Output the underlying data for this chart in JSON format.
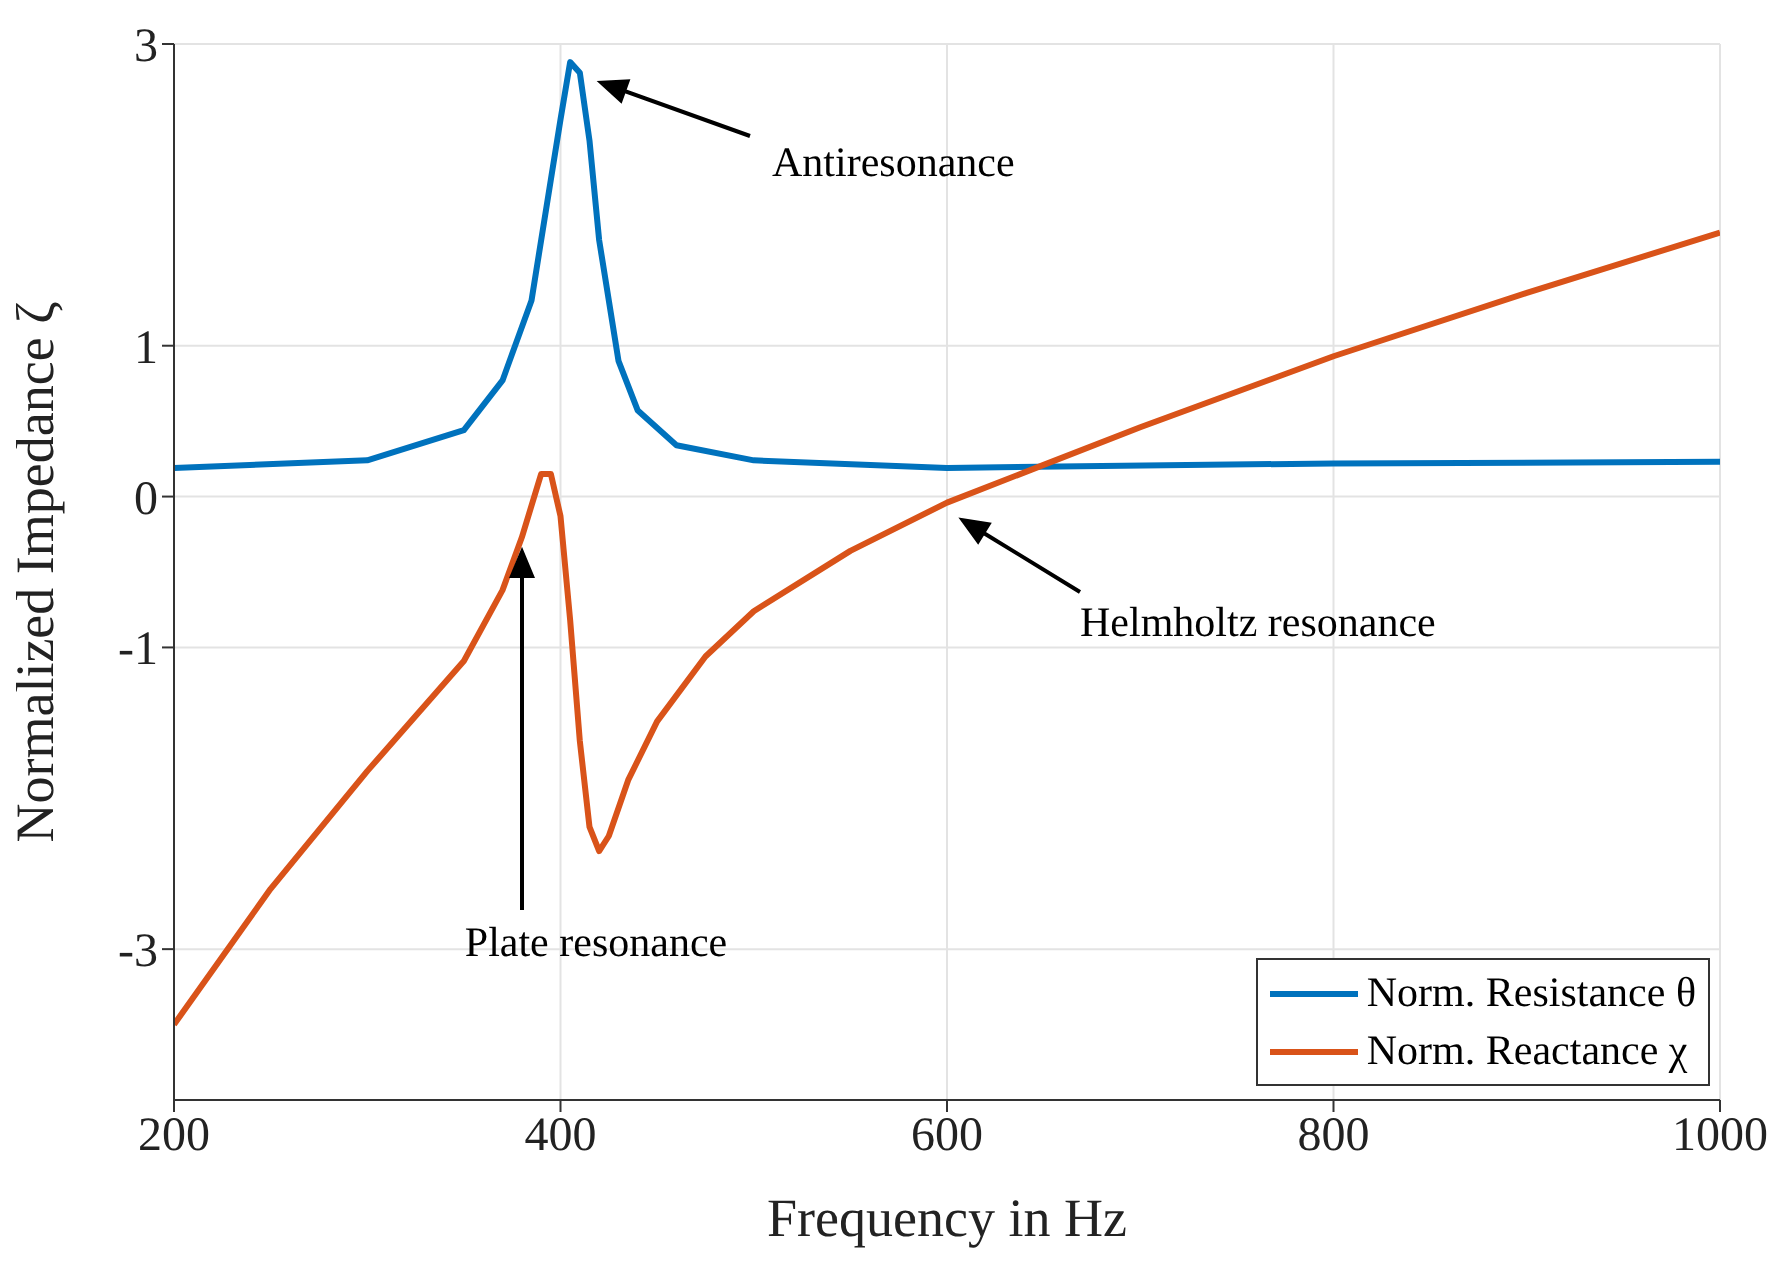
{
  "chart_data": {
    "type": "line",
    "xlabel": "Frequency in Hz",
    "ylabel": "Normalized Impedance ζ",
    "xlim": [
      200,
      1000
    ],
    "xticks": [
      200,
      400,
      600,
      800,
      1000
    ],
    "ylim": [
      -4,
      3
    ],
    "yticks": [
      -3,
      -1,
      0,
      1,
      3
    ],
    "grid": true,
    "legend": "bottom right",
    "marker": "none",
    "line_style": "solid",
    "series": [
      {
        "name": "Norm. Resistance θ",
        "color": "#0072bd",
        "x": [
          200,
          300,
          350,
          370,
          385,
          395,
          400,
          405,
          410,
          415,
          420,
          430,
          440,
          460,
          500,
          600,
          800,
          1000
        ],
        "values": [
          0.19,
          0.24,
          0.44,
          0.77,
          1.3,
          2.1,
          2.5,
          2.88,
          2.81,
          2.36,
          1.7,
          0.9,
          0.57,
          0.34,
          0.24,
          0.19,
          0.22,
          0.23
        ]
      },
      {
        "name": "Norm. Reactance χ",
        "color": "#d95319",
        "x": [
          200,
          250,
          300,
          350,
          370,
          380,
          390,
          395,
          400,
          405,
          410,
          415,
          420,
          425,
          435,
          450,
          475,
          500,
          550,
          600,
          650,
          700,
          800,
          900,
          1000
        ],
        "values": [
          -3.5,
          -2.6,
          -1.82,
          -1.09,
          -0.62,
          -0.27,
          0.15,
          0.15,
          -0.13,
          -0.82,
          -1.62,
          -2.19,
          -2.35,
          -2.25,
          -1.88,
          -1.49,
          -1.06,
          -0.76,
          -0.36,
          -0.04,
          0.21,
          0.46,
          0.93,
          1.35,
          1.75
        ]
      }
    ],
    "annotations": [
      "Antiresonance",
      "Plate resonance",
      "Helmholtz resonance"
    ]
  }
}
